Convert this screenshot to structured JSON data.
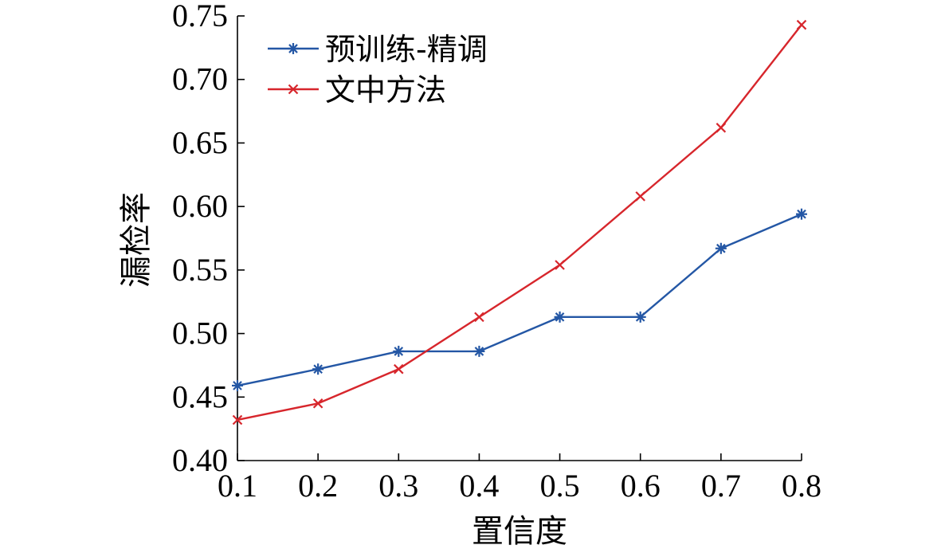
{
  "chart_data": {
    "type": "line",
    "title": "",
    "xlabel": "置信度",
    "ylabel": "漏检率",
    "x": [
      0.1,
      0.2,
      0.3,
      0.4,
      0.5,
      0.6,
      0.7,
      0.8
    ],
    "x_tick_labels": [
      "0.1",
      "0.2",
      "0.3",
      "0.4",
      "0.5",
      "0.6",
      "0.7",
      "0.8"
    ],
    "y_tick_labels": [
      "0.40",
      "0.45",
      "0.50",
      "0.55",
      "0.60",
      "0.65",
      "0.70",
      "0.75"
    ],
    "xlim": [
      0.1,
      0.8
    ],
    "ylim": [
      0.4,
      0.75
    ],
    "grid": false,
    "legend_position": "top-left",
    "series": [
      {
        "name": "预训练-精调",
        "color": "#2457a5",
        "marker": "asterisk",
        "values": [
          0.459,
          0.472,
          0.486,
          0.486,
          0.513,
          0.513,
          0.567,
          0.594
        ]
      },
      {
        "name": "文中方法",
        "color": "#d7262c",
        "marker": "x",
        "values": [
          0.432,
          0.445,
          0.472,
          0.513,
          0.554,
          0.608,
          0.662,
          0.743
        ]
      }
    ]
  }
}
